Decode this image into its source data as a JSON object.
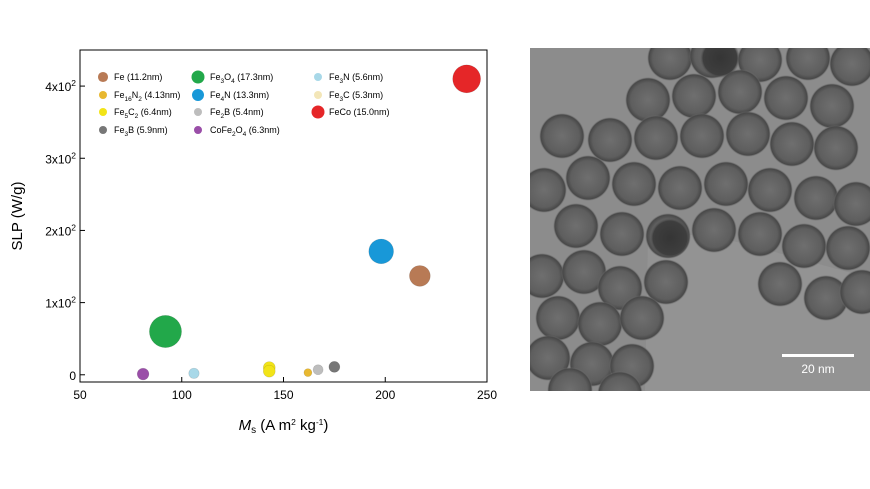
{
  "chart_data": {
    "type": "scatter",
    "title": "",
    "xlabel": "M",
    "xlabel_sub": "s",
    "xlabel_units": " (A m",
    "xlabel_sup1": "2",
    "xlabel_mid": " kg",
    "xlabel_sup2": "-1",
    "xlabel_end": ")",
    "ylabel": "SLP (W/g)",
    "xlim": [
      50,
      250
    ],
    "ylim": [
      -10,
      450
    ],
    "x_ticks": [
      50,
      100,
      150,
      200,
      250
    ],
    "y_ticks": [
      {
        "value": 0,
        "mantissa": "0",
        "exp": ""
      },
      {
        "value": 100,
        "mantissa": "1x10",
        "exp": "2"
      },
      {
        "value": 200,
        "mantissa": "2x10",
        "exp": "2"
      },
      {
        "value": 300,
        "mantissa": "3x10",
        "exp": "2"
      },
      {
        "value": 400,
        "mantissa": "4x10",
        "exp": "2"
      }
    ],
    "grid": false,
    "legend_position": "top-left",
    "series": [
      {
        "label": "Fe (11.2nm)",
        "parts": [
          [
            "Fe (11.2nm)",
            ""
          ]
        ],
        "color": "#b87a55",
        "size_nm": 11.2,
        "points": [
          [
            217,
            137
          ]
        ]
      },
      {
        "label": "Fe3O4 (17.3nm)",
        "parts": [
          [
            "Fe",
            ""
          ],
          [
            "3",
            "sub"
          ],
          [
            "O",
            ""
          ],
          [
            "4",
            "sub"
          ],
          [
            " (17.3nm)",
            ""
          ]
        ],
        "color": "#22a84a",
        "size_nm": 17.3,
        "points": [
          [
            92,
            60
          ]
        ]
      },
      {
        "label": "Fe3N (5.6nm)",
        "parts": [
          [
            "Fe",
            ""
          ],
          [
            "3",
            "sub"
          ],
          [
            "N (5.6nm)",
            ""
          ]
        ],
        "color": "#a8d8e8",
        "size_nm": 5.6,
        "points": [
          [
            106,
            2
          ]
        ]
      },
      {
        "label": "Fe16N2 (4.13nm)",
        "parts": [
          [
            "Fe",
            ""
          ],
          [
            "16",
            "sub"
          ],
          [
            "N",
            ""
          ],
          [
            "2",
            "sub"
          ],
          [
            " (4.13nm)",
            ""
          ]
        ],
        "color": "#e8b830",
        "size_nm": 4.13,
        "points": [
          [
            162,
            3
          ]
        ]
      },
      {
        "label": "Fe4N (13.3nm)",
        "parts": [
          [
            "Fe",
            ""
          ],
          [
            "4",
            "sub"
          ],
          [
            "N (13.3nm)",
            ""
          ]
        ],
        "color": "#1898d8",
        "size_nm": 13.3,
        "points": [
          [
            198,
            171
          ]
        ]
      },
      {
        "label": "Fe3C (5.3nm)",
        "parts": [
          [
            "Fe",
            ""
          ],
          [
            "3",
            "sub"
          ],
          [
            "C (5.3nm)",
            ""
          ]
        ],
        "color": "#f3e6b8",
        "size_nm": 5.3,
        "points": []
      },
      {
        "label": "Fe5C2 (6.4nm)",
        "parts": [
          [
            "Fe",
            ""
          ],
          [
            "5",
            "sub"
          ],
          [
            "C",
            ""
          ],
          [
            "2",
            "sub"
          ],
          [
            " (6.4nm)",
            ""
          ]
        ],
        "color": "#f2e418",
        "size_nm": 6.4,
        "points": [
          [
            143,
            10
          ],
          [
            143,
            5
          ]
        ]
      },
      {
        "label": "Fe2B (5.4nm)",
        "parts": [
          [
            "Fe",
            ""
          ],
          [
            "2",
            "sub"
          ],
          [
            "B (5.4nm)",
            ""
          ]
        ],
        "color": "#bdbdbd",
        "size_nm": 5.4,
        "points": [
          [
            167,
            7
          ]
        ]
      },
      {
        "label": "FeCo (15.0nm)",
        "parts": [
          [
            "FeCo (15.0nm)",
            ""
          ]
        ],
        "color": "#e52628",
        "size_nm": 15.0,
        "points": [
          [
            240,
            410
          ]
        ]
      },
      {
        "label": "Fe3B (5.9nm)",
        "parts": [
          [
            "Fe",
            ""
          ],
          [
            "3",
            "sub"
          ],
          [
            "B (5.9nm)",
            ""
          ]
        ],
        "color": "#777777",
        "size_nm": 5.9,
        "points": [
          [
            175,
            11
          ]
        ]
      },
      {
        "label": "CoFe2O4 (6.3nm)",
        "parts": [
          [
            "CoFe",
            ""
          ],
          [
            "2",
            "sub"
          ],
          [
            "O",
            ""
          ],
          [
            "4",
            "sub"
          ],
          [
            " (6.3nm)",
            ""
          ]
        ],
        "color": "#9a4ea8",
        "size_nm": 6.3,
        "points": [
          [
            81,
            1
          ]
        ]
      }
    ]
  },
  "tem_image": {
    "scale_bar_label": "20 nm"
  }
}
